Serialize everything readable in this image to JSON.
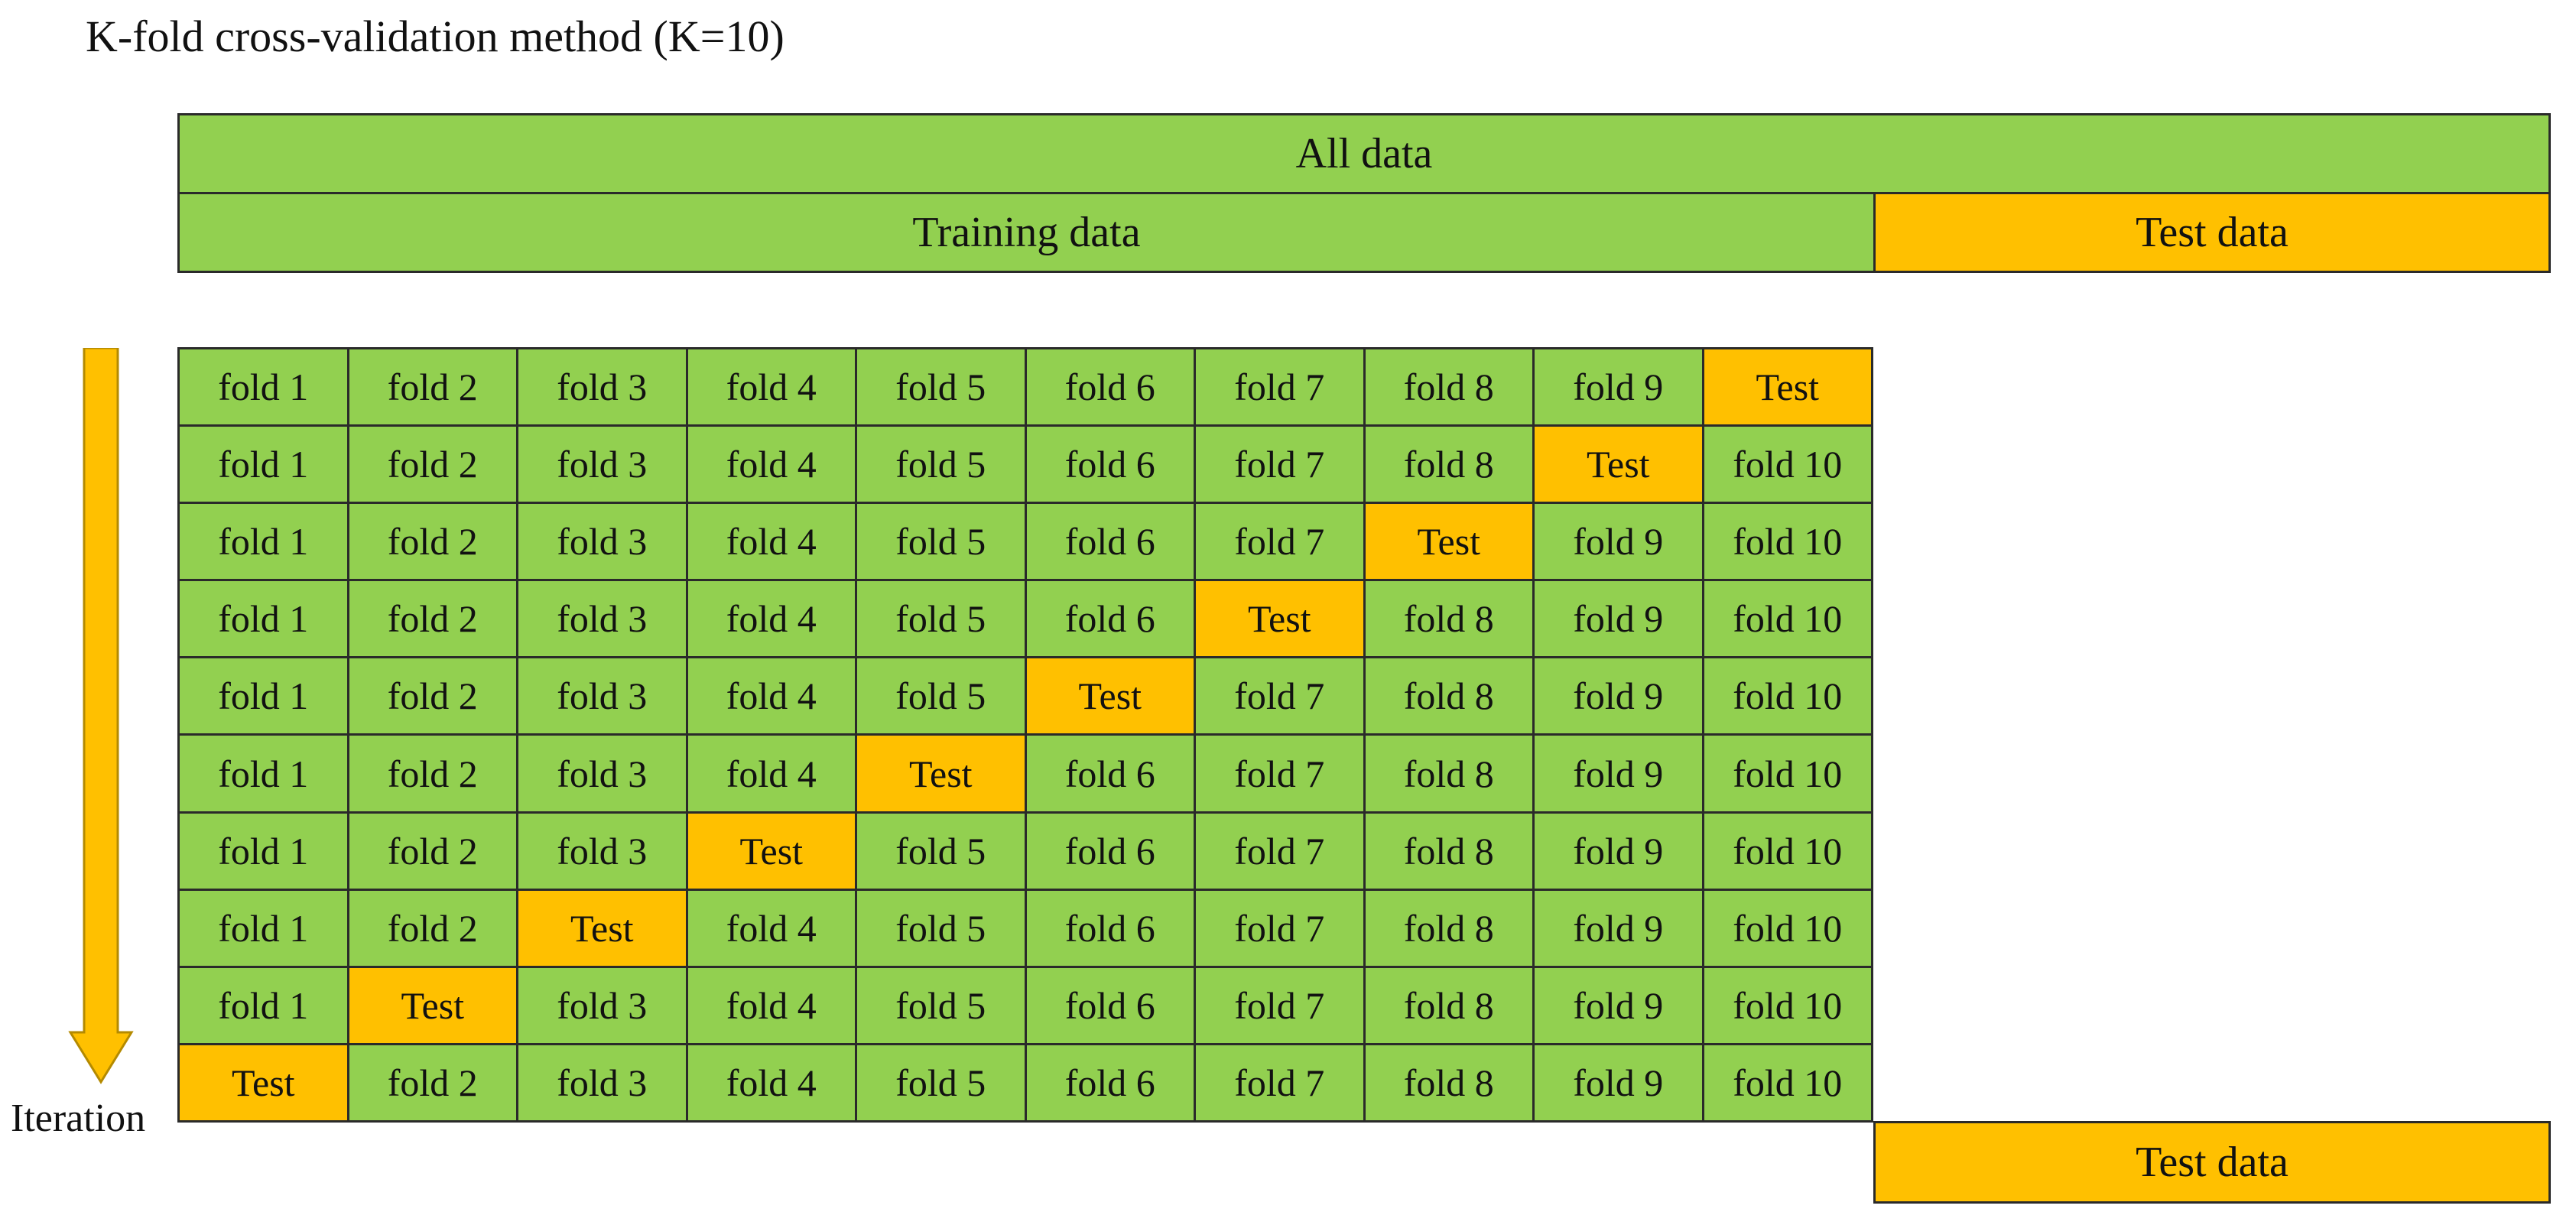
{
  "title": "K-fold cross-validation method (K=10)",
  "all_data_label": "All data",
  "training_data_label": "Training data",
  "test_data_label": "Test data",
  "bottom_test_data_label": "Test data",
  "iteration_label": "Iteration",
  "colors": {
    "train": "#92d050",
    "test": "#ffc000",
    "border": "#2a2a2a"
  },
  "arrow_icon": "down-arrow-icon",
  "rows": [
    [
      "fold 1",
      "fold 2",
      "fold 3",
      "fold 4",
      "fold 5",
      "fold 6",
      "fold 7",
      "fold 8",
      "fold 9",
      "Test"
    ],
    [
      "fold 1",
      "fold 2",
      "fold 3",
      "fold 4",
      "fold 5",
      "fold 6",
      "fold 7",
      "fold 8",
      "Test",
      "fold 10"
    ],
    [
      "fold 1",
      "fold 2",
      "fold 3",
      "fold 4",
      "fold 5",
      "fold 6",
      "fold 7",
      "Test",
      "fold 9",
      "fold 10"
    ],
    [
      "fold 1",
      "fold 2",
      "fold 3",
      "fold 4",
      "fold 5",
      "fold 6",
      "Test",
      "fold 8",
      "fold 9",
      "fold 10"
    ],
    [
      "fold 1",
      "fold 2",
      "fold 3",
      "fold 4",
      "fold 5",
      "Test",
      "fold 7",
      "fold 8",
      "fold 9",
      "fold 10"
    ],
    [
      "fold 1",
      "fold 2",
      "fold 3",
      "fold 4",
      "Test",
      "fold 6",
      "fold 7",
      "fold 8",
      "fold 9",
      "fold 10"
    ],
    [
      "fold 1",
      "fold 2",
      "fold 3",
      "Test",
      "fold 5",
      "fold 6",
      "fold 7",
      "fold 8",
      "fold 9",
      "fold 10"
    ],
    [
      "fold 1",
      "fold 2",
      "Test",
      "fold 4",
      "fold 5",
      "fold 6",
      "fold 7",
      "fold 8",
      "fold 9",
      "fold 10"
    ],
    [
      "fold 1",
      "Test",
      "fold 3",
      "fold 4",
      "fold 5",
      "fold 6",
      "fold 7",
      "fold 8",
      "fold 9",
      "fold 10"
    ],
    [
      "Test",
      "fold 2",
      "fold 3",
      "fold 4",
      "fold 5",
      "fold 6",
      "fold 7",
      "fold 8",
      "fold 9",
      "fold 10"
    ]
  ]
}
